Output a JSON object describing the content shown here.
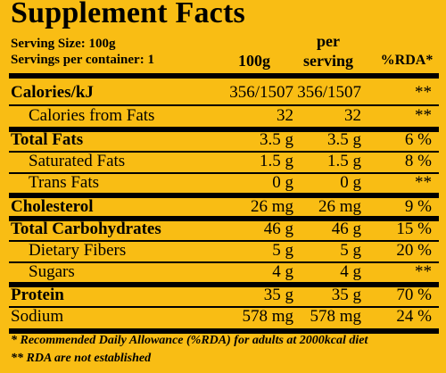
{
  "title": "Supplement Facts",
  "serving_size": "Serving Size: 100g",
  "servings_per_container": "Servings per container: 1",
  "columns": {
    "per_100g": "100g",
    "per_serving_line1": "per",
    "per_serving_line2": "serving",
    "rda": "%RDA*"
  },
  "rows": [
    {
      "label": "Calories/kJ",
      "per_100g": "356/1507",
      "per_serving": "356/1507",
      "rda": "**"
    },
    {
      "label": "Calories from Fats",
      "per_100g": "32",
      "per_serving": "32",
      "rda": "**"
    },
    {
      "label": "Total Fats",
      "per_100g": "3.5 g",
      "per_serving": "3.5 g",
      "rda": "6 %"
    },
    {
      "label": "Saturated Fats",
      "per_100g": "1.5 g",
      "per_serving": "1.5 g",
      "rda": "8 %"
    },
    {
      "label": "Trans Fats",
      "per_100g": "0 g",
      "per_serving": "0 g",
      "rda": "**"
    },
    {
      "label": "Cholesterol",
      "per_100g": "26 mg",
      "per_serving": "26 mg",
      "rda": "9 %"
    },
    {
      "label": "Total Carbohydrates",
      "per_100g": "46 g",
      "per_serving": "46 g",
      "rda": "15 %"
    },
    {
      "label": "Dietary Fibers",
      "per_100g": "5 g",
      "per_serving": "5 g",
      "rda": "20 %"
    },
    {
      "label": "Sugars",
      "per_100g": "4 g",
      "per_serving": "4 g",
      "rda": "**"
    },
    {
      "label": "Protein",
      "per_100g": "35 g",
      "per_serving": "35 g",
      "rda": "70 %"
    },
    {
      "label": "Sodium",
      "per_100g": "578 mg",
      "per_serving": "578 mg",
      "rda": "24 %"
    }
  ],
  "footnotes": [
    "* Recommended Daily Allowance (%RDA) for adults at 2000kcal diet",
    "** RDA are not established"
  ],
  "colors": {
    "background": "#f9bd14",
    "text": "#000000"
  }
}
